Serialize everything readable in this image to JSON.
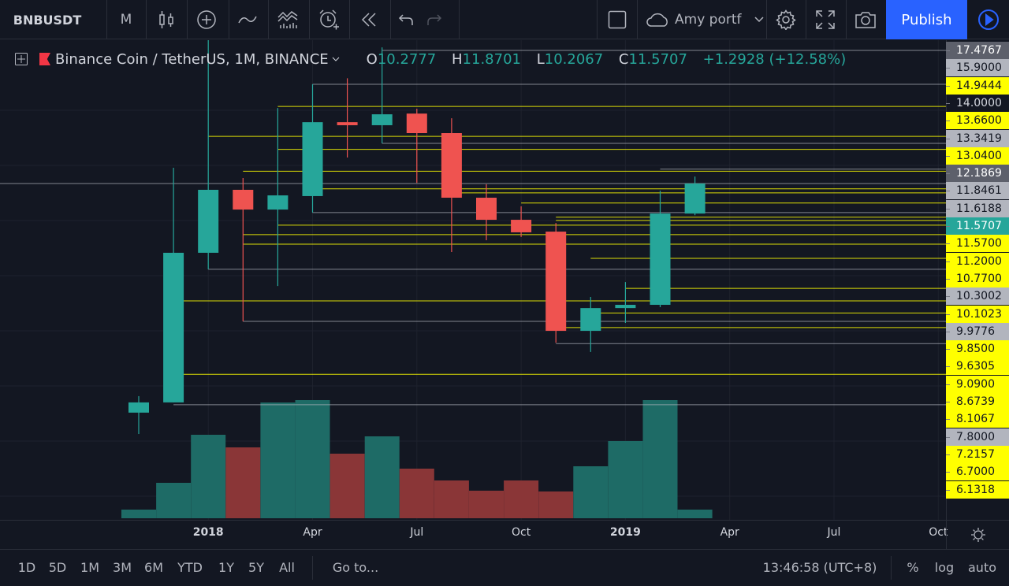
{
  "toolbar": {
    "symbol": "BNBUSDT",
    "interval": "M",
    "layout_name": "Amy portf",
    "publish_label": "Publish",
    "icons": [
      "candles-icon",
      "add-compare-icon",
      "indicator-wave-icon",
      "financials-icon",
      "alarm-icon",
      "replay-icon",
      "undo-icon",
      "redo-icon",
      "layout-square-icon",
      "cloud-icon",
      "chevron-down-icon",
      "gear-icon",
      "fullscreen-icon",
      "camera-icon",
      "play-icon"
    ]
  },
  "legend": {
    "title": "Binance Coin / TetherUS, 1M, BINANCE",
    "o_label": "O",
    "o": "10.2777",
    "h_label": "H",
    "h": "11.8701",
    "l_label": "L",
    "l": "10.2067",
    "c_label": "C",
    "c": "11.5707",
    "change": "+1.2928 (+12.58%)"
  },
  "colors": {
    "background": "#131722",
    "up": "#26a69a",
    "down": "#ef5350",
    "vol_up": "#1e6b66",
    "vol_down": "#8a3637",
    "line_yellow": "#ffff00",
    "line_gray": "#b2b5be",
    "accent": "#2962ff"
  },
  "price_labels": [
    {
      "text": "17.4767",
      "style": "dark"
    },
    {
      "text": "15.9000",
      "style": "gray"
    },
    {
      "text": "14.9444",
      "style": "yellow"
    },
    {
      "text": "14.0000",
      "style": "hidden"
    },
    {
      "text": "13.6600",
      "style": "yellow"
    },
    {
      "text": "13.3419",
      "style": "gray"
    },
    {
      "text": "13.0400",
      "style": "yellow"
    },
    {
      "text": "12.1869",
      "style": "dark"
    },
    {
      "text": "11.8461",
      "style": "gray"
    },
    {
      "text": "11.6188",
      "style": "gray"
    },
    {
      "text": "11.5707",
      "style": "teal"
    },
    {
      "text": "11.5700",
      "style": "yellow"
    },
    {
      "text": "11.2000",
      "style": "yellow"
    },
    {
      "text": "10.7700",
      "style": "yellow"
    },
    {
      "text": "10.3002",
      "style": "gray"
    },
    {
      "text": "10.1023",
      "style": "yellow"
    },
    {
      "text": "9.9776",
      "style": "gray"
    },
    {
      "text": "9.8500",
      "style": "yellow"
    },
    {
      "text": "9.6305",
      "style": "yellow"
    },
    {
      "text": "9.0900",
      "style": "yellow"
    },
    {
      "text": "8.6739",
      "style": "yellow"
    },
    {
      "text": "8.1067",
      "style": "yellow"
    },
    {
      "text": "7.8000",
      "style": "gray"
    },
    {
      "text": "7.2157",
      "style": "yellow"
    },
    {
      "text": "6.7000",
      "style": "yellow"
    },
    {
      "text": "6.1318",
      "style": "yellow"
    }
  ],
  "time_labels": [
    {
      "text": "2018",
      "idx": 2,
      "bold": true
    },
    {
      "text": "Apr",
      "idx": 5
    },
    {
      "text": "Jul",
      "idx": 8
    },
    {
      "text": "Oct",
      "idx": 11
    },
    {
      "text": "2019",
      "idx": 14,
      "bold": true
    },
    {
      "text": "Apr",
      "idx": 17
    },
    {
      "text": "Jul",
      "idx": 20
    },
    {
      "text": "Oct",
      "idx": 23
    }
  ],
  "bottom": {
    "ranges": [
      "1D",
      "5D",
      "1M",
      "3M",
      "6M",
      "YTD",
      "1Y",
      "5Y",
      "All"
    ],
    "goto": "Go to...",
    "clock": "13:46:58 (UTC+8)",
    "percent": "%",
    "log": "log",
    "auto": "auto"
  },
  "chart_data": {
    "type": "candlestick",
    "categories": [
      "2017-11",
      "2017-12",
      "2018-01",
      "2018-02",
      "2018-03",
      "2018-04",
      "2018-05",
      "2018-06",
      "2018-07",
      "2018-08",
      "2018-09",
      "2018-10",
      "2018-11",
      "2018-12",
      "2019-01",
      "2019-02",
      "2019-03"
    ],
    "ohlc": [
      [
        1.71,
        2.42,
        0.79,
        2.15
      ],
      [
        2.15,
        12.25,
        2.15,
        8.59
      ],
      [
        8.59,
        18.0,
        7.88,
        11.3
      ],
      [
        11.3,
        11.81,
        5.64,
        10.45
      ],
      [
        10.45,
        14.82,
        7.16,
        11.06
      ],
      [
        11.03,
        15.84,
        10.32,
        14.21
      ],
      [
        14.21,
        16.1,
        12.69,
        14.08
      ],
      [
        14.08,
        17.43,
        13.3,
        14.55
      ],
      [
        14.58,
        14.79,
        11.6,
        13.74
      ],
      [
        13.74,
        14.38,
        8.62,
        10.96
      ],
      [
        10.96,
        11.54,
        9.13,
        10.01
      ],
      [
        10.01,
        10.59,
        9.27,
        9.47
      ],
      [
        9.5,
        9.87,
        4.72,
        5.23
      ],
      [
        5.23,
        6.69,
        4.32,
        6.21
      ],
      [
        6.21,
        7.33,
        5.57,
        6.35
      ],
      [
        6.35,
        11.26,
        6.25,
        10.28
      ],
      [
        10.2777,
        11.8701,
        10.2067,
        11.5707
      ]
    ],
    "volume_relative": [
      11,
      45,
      106,
      90,
      147,
      150,
      82,
      104,
      63,
      48,
      35,
      48,
      34,
      66,
      98,
      150,
      11
    ],
    "horizontal_lines": [
      {
        "price": 17.3,
        "from": 7,
        "color": "gray"
      },
      {
        "price": 15.84,
        "from": 5,
        "color": "gray"
      },
      {
        "price": 14.89,
        "from": 4,
        "color": "yellow"
      },
      {
        "price": 13.6,
        "from": 2,
        "color": "yellow"
      },
      {
        "price": 13.3,
        "from": 7,
        "color": "gray"
      },
      {
        "price": 13.04,
        "from": 4,
        "color": "yellow"
      },
      {
        "price": 12.19,
        "from": 15,
        "color": "gray"
      },
      {
        "price": 12.1,
        "from": 3,
        "color": "yellow"
      },
      {
        "price": 11.57,
        "from": -4,
        "color": "gray"
      },
      {
        "price": 11.34,
        "from": 5,
        "color": "yellow"
      },
      {
        "price": 11.17,
        "from": 9,
        "color": "yellow"
      },
      {
        "price": 10.73,
        "from": 11,
        "color": "yellow"
      },
      {
        "price": 10.32,
        "from": 5,
        "color": "gray"
      },
      {
        "price": 10.12,
        "from": 12,
        "color": "yellow"
      },
      {
        "price": 9.98,
        "from": 12,
        "color": "yellow"
      },
      {
        "price": 9.78,
        "from": 4,
        "color": "yellow"
      },
      {
        "price": 9.37,
        "from": 3,
        "color": "yellow"
      },
      {
        "price": 8.96,
        "from": 3,
        "color": "yellow"
      },
      {
        "price": 8.35,
        "from": 13,
        "color": "yellow"
      },
      {
        "price": 7.88,
        "from": 2,
        "color": "gray"
      },
      {
        "price": 7.06,
        "from": 14,
        "color": "yellow"
      },
      {
        "price": 6.52,
        "from": 1,
        "color": "yellow"
      },
      {
        "price": 6.0,
        "from": 13,
        "color": "yellow"
      },
      {
        "price": 5.64,
        "from": 3,
        "color": "gray"
      },
      {
        "price": 5.37,
        "from": 12,
        "color": "yellow"
      },
      {
        "price": 4.68,
        "from": 12,
        "color": "gray"
      },
      {
        "price": 3.36,
        "from": 1,
        "color": "yellow"
      },
      {
        "price": 2.05,
        "from": 1,
        "color": "gray"
      }
    ]
  }
}
